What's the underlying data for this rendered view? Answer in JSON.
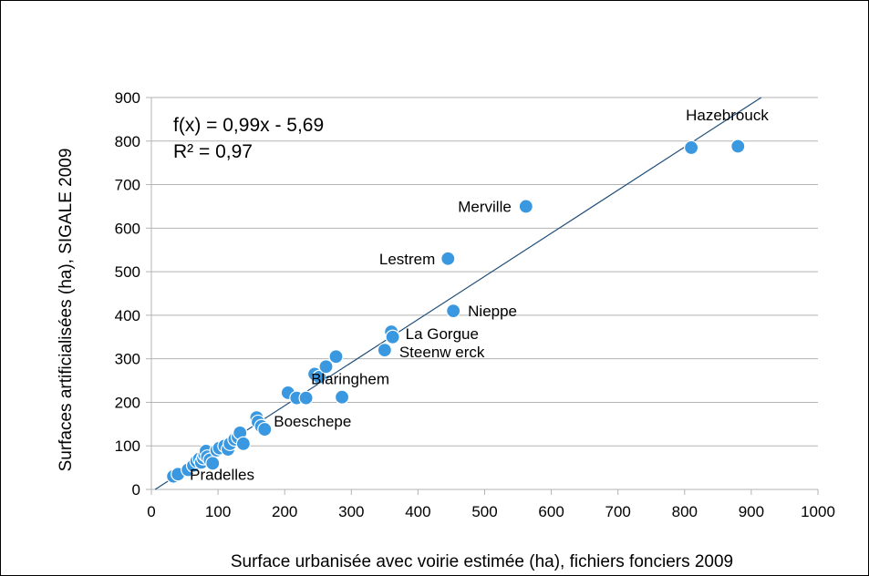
{
  "chart_data": {
    "type": "scatter",
    "title": "",
    "xlabel": "Surface urbanisée avec voirie estimée (ha), fichiers fonciers 2009",
    "ylabel": "Surfaces artificialisées (ha), SIGALE 2009",
    "xlim": [
      0,
      1000
    ],
    "ylim": [
      0,
      900
    ],
    "x_ticks": [
      0,
      100,
      200,
      300,
      400,
      500,
      600,
      700,
      800,
      900,
      1000
    ],
    "y_ticks": [
      0,
      100,
      200,
      300,
      400,
      500,
      600,
      700,
      800,
      900
    ],
    "grid": "horizontal",
    "marker_color": "#3a98e0",
    "trendline_color": "#1f4e79",
    "trendline": {
      "slope": 0.99,
      "intercept": -5.69
    },
    "equation_lines": [
      "f(x) = 0,99x - 5,69",
      "R² = 0,97"
    ],
    "points": [
      {
        "x": 33,
        "y": 30
      },
      {
        "x": 40,
        "y": 35
      },
      {
        "x": 55,
        "y": 45
      },
      {
        "x": 63,
        "y": 55
      },
      {
        "x": 68,
        "y": 65
      },
      {
        "x": 72,
        "y": 70
      },
      {
        "x": 75,
        "y": 62
      },
      {
        "x": 78,
        "y": 72
      },
      {
        "x": 80,
        "y": 80
      },
      {
        "x": 82,
        "y": 88
      },
      {
        "x": 84,
        "y": 75
      },
      {
        "x": 88,
        "y": 68
      },
      {
        "x": 92,
        "y": 60
      },
      {
        "x": 98,
        "y": 90
      },
      {
        "x": 102,
        "y": 95
      },
      {
        "x": 110,
        "y": 100
      },
      {
        "x": 115,
        "y": 92
      },
      {
        "x": 118,
        "y": 105
      },
      {
        "x": 125,
        "y": 115
      },
      {
        "x": 130,
        "y": 120
      },
      {
        "x": 133,
        "y": 130
      },
      {
        "x": 138,
        "y": 105
      },
      {
        "x": 158,
        "y": 165
      },
      {
        "x": 160,
        "y": 155
      },
      {
        "x": 165,
        "y": 145
      },
      {
        "x": 170,
        "y": 138
      },
      {
        "x": 205,
        "y": 222
      },
      {
        "x": 218,
        "y": 210
      },
      {
        "x": 232,
        "y": 210
      },
      {
        "x": 245,
        "y": 265
      },
      {
        "x": 252,
        "y": 258
      },
      {
        "x": 262,
        "y": 282
      },
      {
        "x": 277,
        "y": 305
      },
      {
        "x": 286,
        "y": 212
      },
      {
        "x": 350,
        "y": 320
      },
      {
        "x": 360,
        "y": 362
      },
      {
        "x": 362,
        "y": 350
      },
      {
        "x": 445,
        "y": 530
      },
      {
        "x": 453,
        "y": 410
      },
      {
        "x": 562,
        "y": 650
      },
      {
        "x": 810,
        "y": 785
      },
      {
        "x": 880,
        "y": 788
      }
    ],
    "annotations": [
      {
        "text": "Hazebrouck",
        "x": 810,
        "y": 785
      },
      {
        "text": "Merville",
        "x": 562,
        "y": 650
      },
      {
        "text": "Lestrem",
        "x": 445,
        "y": 530
      },
      {
        "text": "Nieppe",
        "x": 453,
        "y": 410
      },
      {
        "text": "La Gorgue",
        "x": 362,
        "y": 350
      },
      {
        "text": "Steenw erck",
        "x": 350,
        "y": 320
      },
      {
        "text": "Blaringhem",
        "x": 286,
        "y": 212
      },
      {
        "text": "Boeschepe",
        "x": 170,
        "y": 138
      },
      {
        "text": "Pradelles",
        "x": 33,
        "y": 30
      }
    ]
  }
}
